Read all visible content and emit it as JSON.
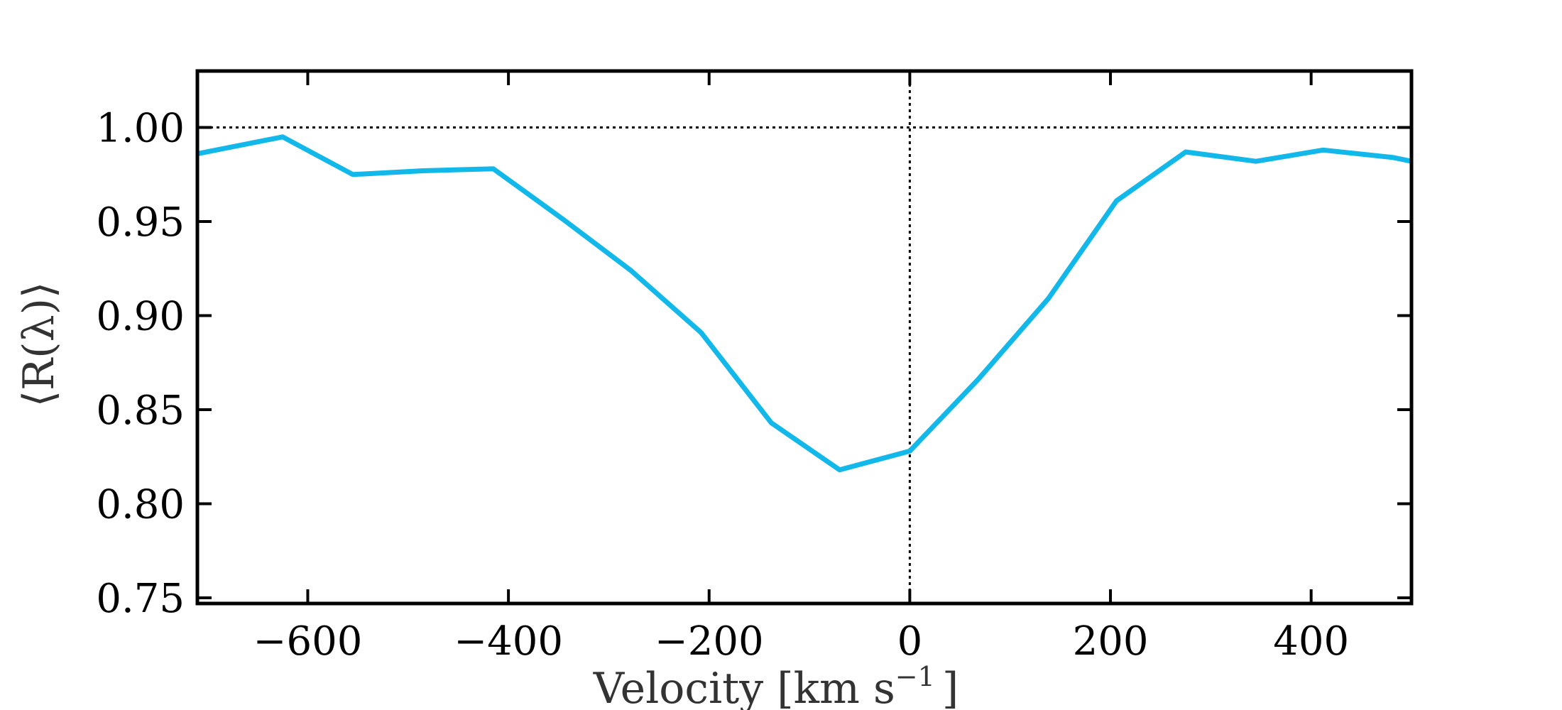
{
  "chart_data": {
    "type": "line",
    "title": "",
    "xlabel": "Velocity [km s−1]",
    "xlabel_main": "Velocity [km s",
    "xlabel_sup": "−1",
    "xlabel_end": "]",
    "ylabel": "⟨R(λ)⟩",
    "xlim": [
      -710,
      500
    ],
    "ylim": [
      0.747,
      1.03
    ],
    "xticks": [
      -600,
      -400,
      -200,
      0,
      200,
      400
    ],
    "xtick_labels": [
      "−600",
      "−400",
      "−200",
      "0",
      "200",
      "400"
    ],
    "yticks": [
      0.75,
      0.8,
      0.85,
      0.9,
      0.95,
      1.0
    ],
    "ytick_labels": [
      "0.75",
      "0.80",
      "0.85",
      "0.90",
      "0.95",
      "1.00"
    ],
    "reference_lines": {
      "y": 1.0,
      "x": 0
    },
    "series": [
      {
        "color": "#12b8ea",
        "x": [
          -710,
          -625,
          -555,
          -485,
          -415,
          -345,
          -278,
          -208,
          -138,
          -70,
          0,
          68,
          138,
          206,
          275,
          345,
          412,
          482,
          500
        ],
        "y": [
          0.986,
          0.995,
          0.975,
          0.977,
          0.978,
          0.951,
          0.924,
          0.891,
          0.843,
          0.818,
          0.828,
          0.866,
          0.909,
          0.961,
          0.987,
          0.982,
          0.988,
          0.984,
          0.982
        ]
      }
    ]
  }
}
